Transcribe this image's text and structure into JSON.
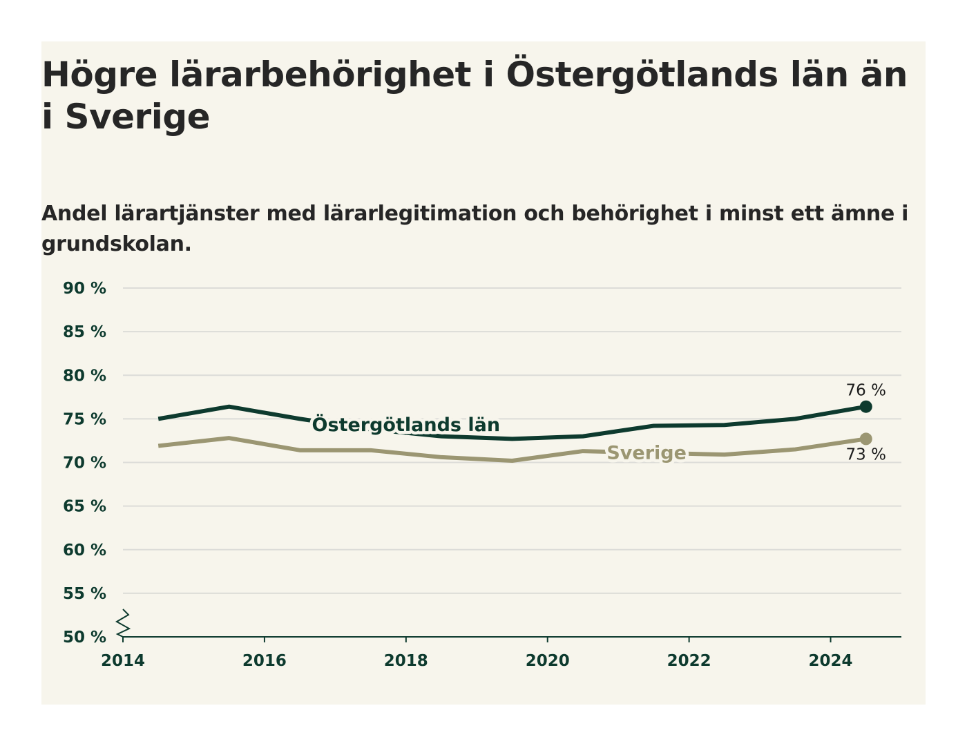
{
  "chart_data": {
    "type": "line",
    "title": "Högre lärarbehörighet i Östergötlands län än i Sverige",
    "subtitle": "Andel lärartjänster med lärarlegitimation och behörighet i minst ett ämne i grundskolan.",
    "x": [
      2014.5,
      2015.5,
      2016.5,
      2017.5,
      2018.5,
      2019.5,
      2020.5,
      2021.5,
      2022.5,
      2023.5,
      2024.5
    ],
    "x_ticks": [
      "2014",
      "2016",
      "2018",
      "2020",
      "2022",
      "2024"
    ],
    "x_tick_values": [
      2014,
      2016,
      2018,
      2020,
      2022,
      2024
    ],
    "xlim": [
      2014,
      2025
    ],
    "y_ticks": [
      "50 %",
      "55 %",
      "60 %",
      "65 %",
      "70 %",
      "75 %",
      "80 %",
      "85 %",
      "90 %"
    ],
    "y_tick_values": [
      50,
      55,
      60,
      65,
      70,
      75,
      80,
      85,
      90
    ],
    "ylim": [
      50,
      90
    ],
    "axis_break": true,
    "grid": true,
    "series": [
      {
        "name": "Östergötlands län",
        "color": "#0d3a2e",
        "values": [
          75.0,
          76.4,
          75.0,
          73.8,
          73.0,
          72.7,
          73.0,
          74.2,
          74.3,
          75.0,
          76.4
        ],
        "end_label": "76 %",
        "label_x": 2018.0,
        "label_y": 74.4
      },
      {
        "name": "Sverige",
        "color": "#9b9672",
        "values": [
          71.9,
          72.8,
          71.4,
          71.4,
          70.6,
          70.2,
          71.3,
          71.1,
          70.9,
          71.5,
          72.7
        ],
        "end_label": "73 %",
        "label_x": 2021.4,
        "label_y": 71.2
      }
    ]
  }
}
